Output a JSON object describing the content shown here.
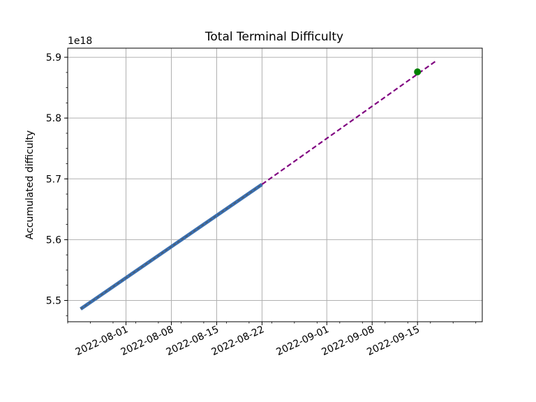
{
  "chart_data": {
    "type": "line",
    "title": "Total Terminal Difficulty",
    "xlabel": "",
    "ylabel": "Accumulated difficulty",
    "y_offset_label": "1e18",
    "y_scale_exponent": 18,
    "grid": true,
    "xlim": [
      "2022-07-23",
      "2022-09-25"
    ],
    "ylim": [
      5.465,
      5.915
    ],
    "x_ticks": [
      "2022-08-01",
      "2022-08-08",
      "2022-08-15",
      "2022-08-22",
      "2022-09-01",
      "2022-09-08",
      "2022-09-15"
    ],
    "y_ticks": [
      5.5,
      5.6,
      5.7,
      5.8,
      5.9
    ],
    "series": [
      {
        "style": "thick-solid",
        "color": "#3a6fb0",
        "x": [
          "2022-07-25",
          "2022-08-22"
        ],
        "y": [
          5.486,
          5.691
        ]
      },
      {
        "style": "dashed",
        "color": "#800080",
        "x": [
          "2022-08-22",
          "2022-09-18"
        ],
        "y": [
          5.691,
          5.895
        ]
      },
      {
        "style": "marker",
        "color": "#008000",
        "x": [
          "2022-09-15"
        ],
        "y": [
          5.876
        ]
      }
    ]
  }
}
